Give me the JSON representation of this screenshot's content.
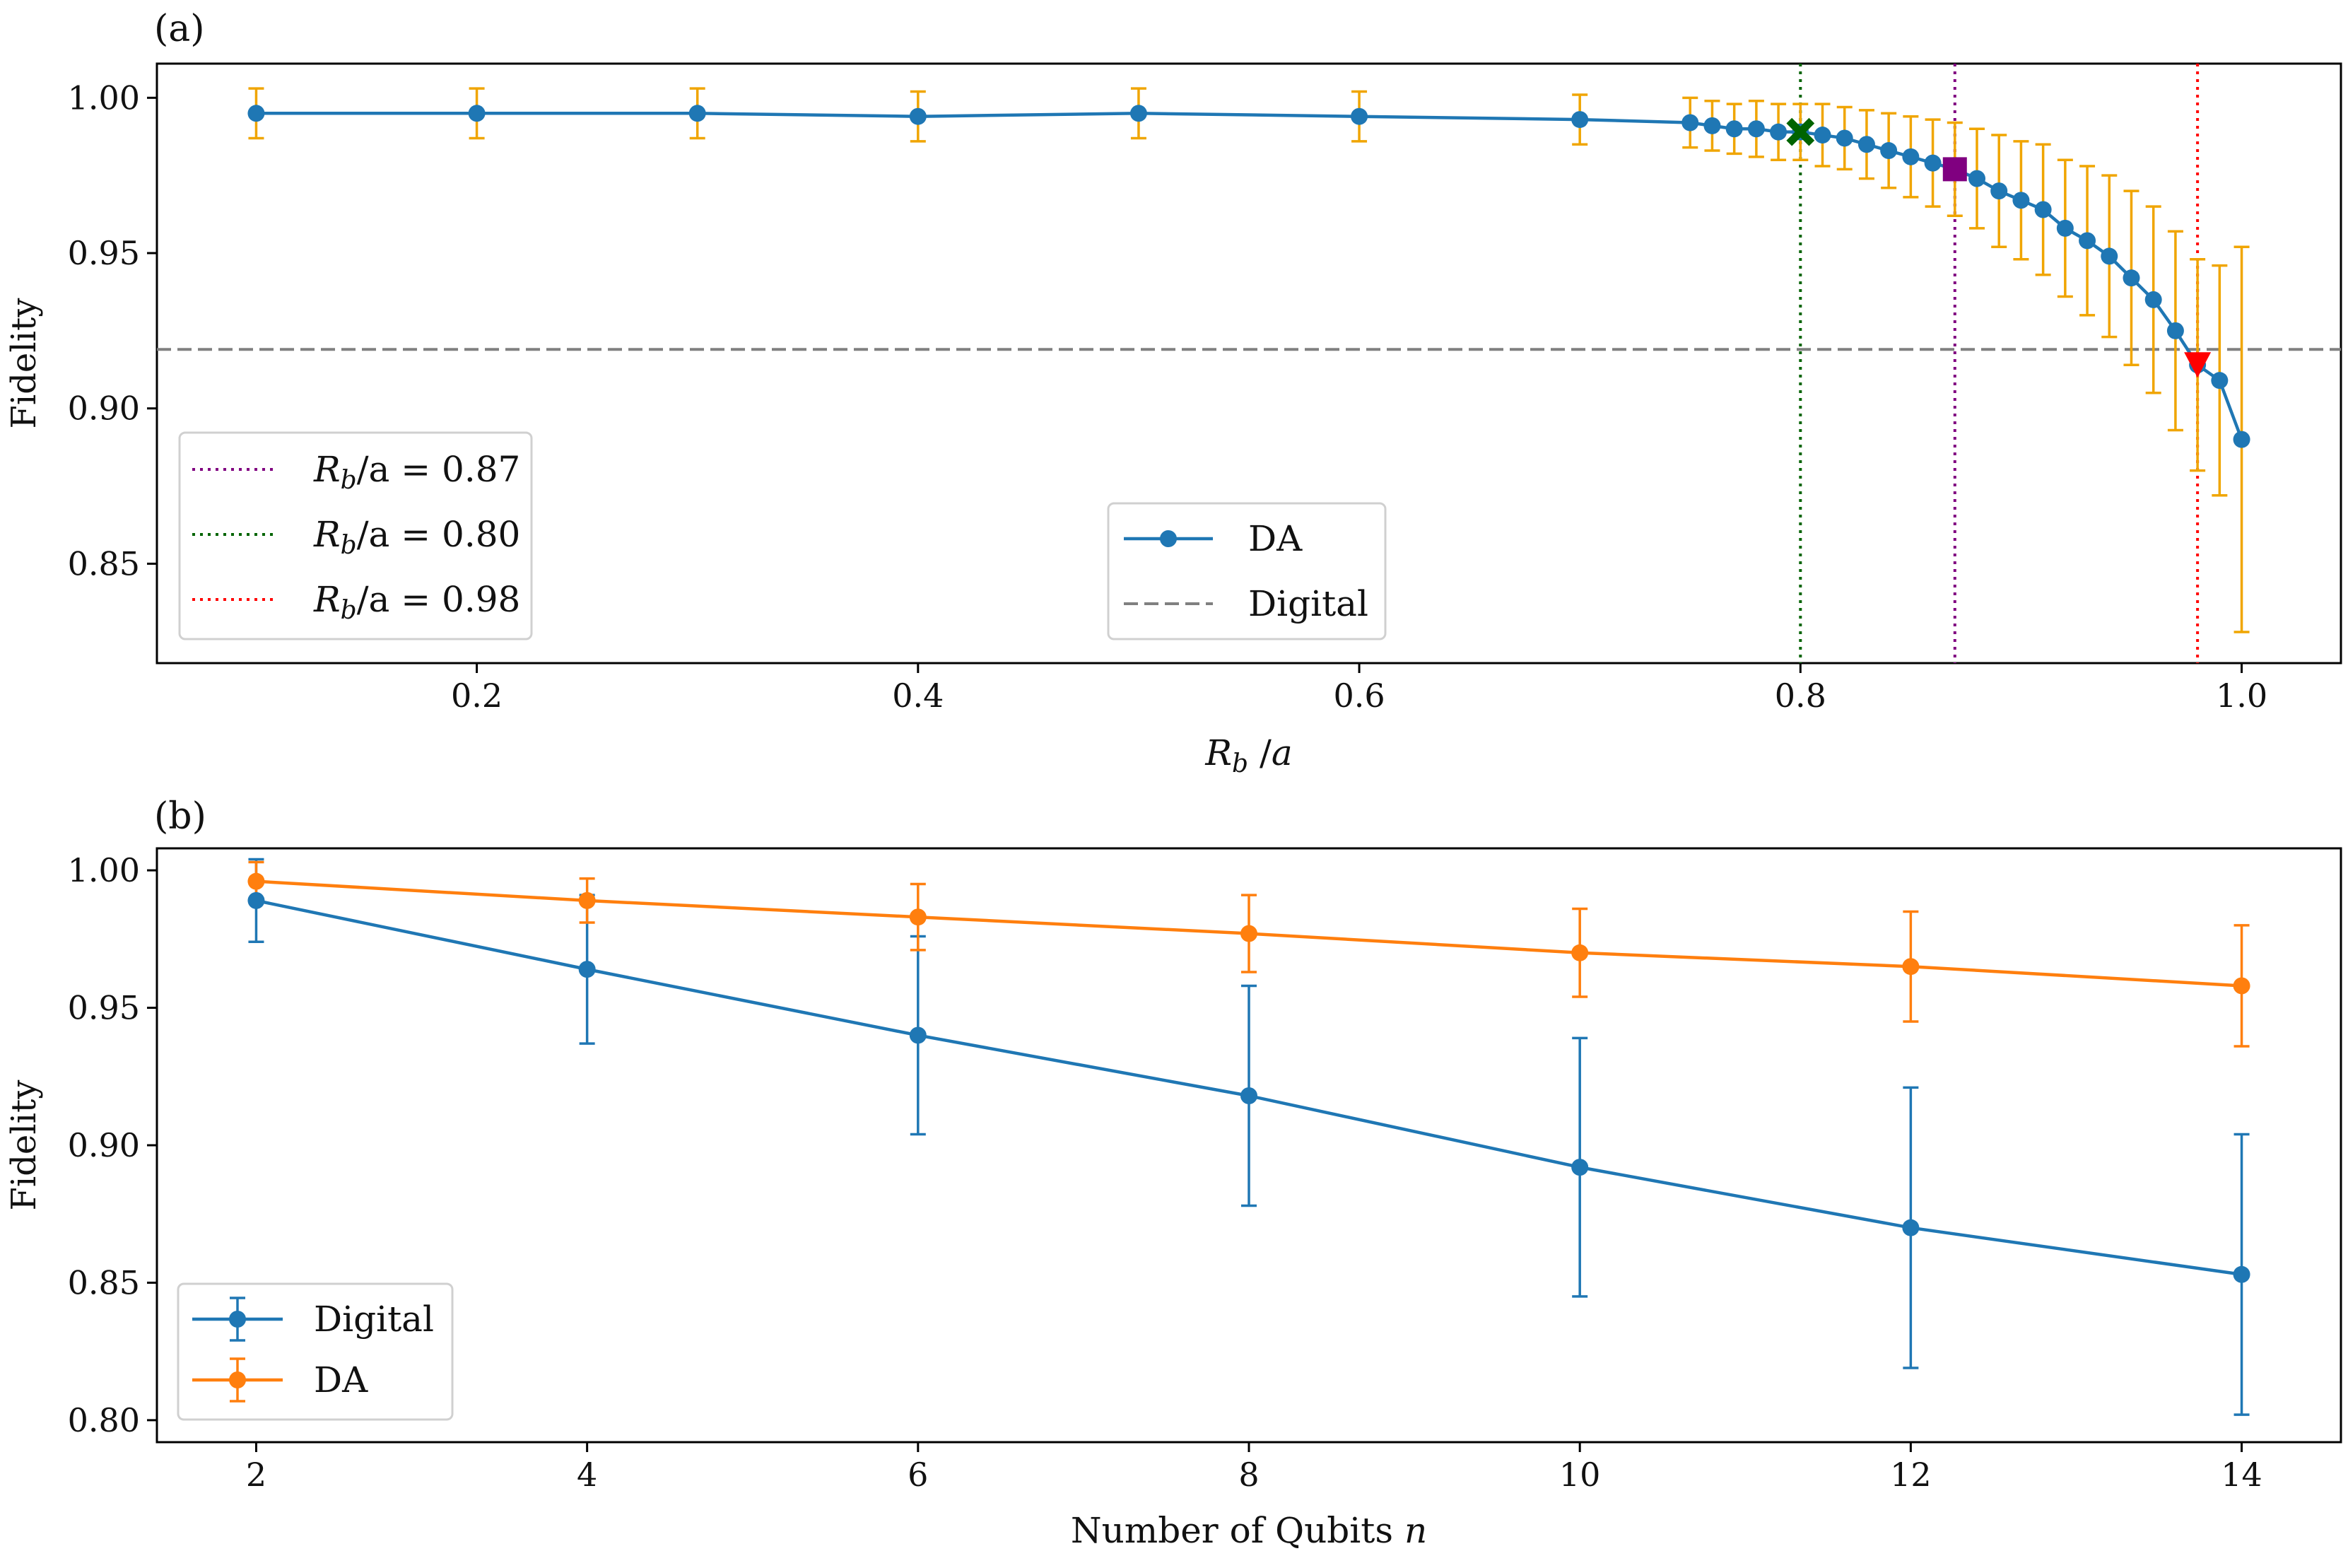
{
  "chart_data": [
    {
      "panel_label": "(a)",
      "type": "line",
      "title": "",
      "xlabel": "R_b /a",
      "ylabel": "Fidelity",
      "xlim": [
        0.055,
        1.045
      ],
      "ylim": [
        0.818,
        1.011
      ],
      "xticks": [
        0.2,
        0.4,
        0.6,
        0.8,
        1.0
      ],
      "xtick_labels": [
        "0.2",
        "0.4",
        "0.6",
        "0.8",
        "1.0"
      ],
      "yticks": [
        0.85,
        0.9,
        0.95,
        1.0
      ],
      "ytick_labels": [
        "0.85",
        "0.90",
        "0.95",
        "1.00"
      ],
      "series": [
        {
          "name": "DA",
          "color": "#1f77b4",
          "errorbar_color": "#f0a500",
          "x": [
            0.1,
            0.2,
            0.3,
            0.4,
            0.5,
            0.6,
            0.7,
            0.75,
            0.76,
            0.77,
            0.78,
            0.79,
            0.8,
            0.81,
            0.82,
            0.83,
            0.84,
            0.85,
            0.86,
            0.87,
            0.88,
            0.89,
            0.9,
            0.91,
            0.92,
            0.93,
            0.94,
            0.95,
            0.96,
            0.97,
            0.98,
            0.99,
            1.0
          ],
          "y": [
            0.995,
            0.995,
            0.995,
            0.994,
            0.995,
            0.994,
            0.993,
            0.992,
            0.991,
            0.99,
            0.99,
            0.989,
            0.989,
            0.988,
            0.987,
            0.985,
            0.983,
            0.981,
            0.979,
            0.977,
            0.974,
            0.97,
            0.967,
            0.964,
            0.958,
            0.954,
            0.949,
            0.942,
            0.935,
            0.925,
            0.914,
            0.909,
            0.89
          ],
          "yerr": [
            0.008,
            0.008,
            0.008,
            0.008,
            0.008,
            0.008,
            0.008,
            0.008,
            0.008,
            0.008,
            0.009,
            0.009,
            0.009,
            0.01,
            0.01,
            0.011,
            0.012,
            0.013,
            0.014,
            0.015,
            0.016,
            0.018,
            0.019,
            0.021,
            0.022,
            0.024,
            0.026,
            0.028,
            0.03,
            0.032,
            0.034,
            0.037,
            0.062
          ]
        }
      ],
      "hlines": [
        {
          "name": "Digital",
          "y": 0.919,
          "color": "#808080",
          "style": "dashed"
        }
      ],
      "vlines": [
        {
          "label": "R_b/a = 0.87",
          "x": 0.87,
          "color": "#800080",
          "style": "dotted"
        },
        {
          "label": "R_b/a = 0.80",
          "x": 0.8,
          "color": "#006400",
          "style": "dotted"
        },
        {
          "label": "R_b/a = 0.98",
          "x": 0.98,
          "color": "#ff0000",
          "style": "dotted"
        }
      ],
      "markers": [
        {
          "x": 0.8,
          "y": 0.989,
          "shape": "x",
          "color": "#006400"
        },
        {
          "x": 0.87,
          "y": 0.977,
          "shape": "square",
          "color": "#800080"
        },
        {
          "x": 0.98,
          "y": 0.914,
          "shape": "triangle-down",
          "color": "#ff0000"
        }
      ],
      "legends": [
        {
          "position": "lower-left",
          "entries": [
            {
              "prefix": "R",
              "sub": "b",
              "rest": "/a = 0.87",
              "color": "#800080",
              "style": "dotted"
            },
            {
              "prefix": "R",
              "sub": "b",
              "rest": "/a = 0.80",
              "color": "#006400",
              "style": "dotted"
            },
            {
              "prefix": "R",
              "sub": "b",
              "rest": "/a = 0.98",
              "color": "#ff0000",
              "style": "dotted"
            }
          ]
        },
        {
          "position": "lower-center",
          "entries": [
            {
              "label": "DA",
              "color": "#1f77b4",
              "style": "line-marker"
            },
            {
              "label": "Digital",
              "color": "#808080",
              "style": "dashed"
            }
          ]
        }
      ]
    },
    {
      "panel_label": "(b)",
      "type": "line",
      "title": "",
      "xlabel": "Number of Qubits n",
      "ylabel": "Fidelity",
      "xlim": [
        1.4,
        14.6
      ],
      "ylim": [
        0.792,
        1.008
      ],
      "xticks": [
        2,
        4,
        6,
        8,
        10,
        12,
        14
      ],
      "xtick_labels": [
        "2",
        "4",
        "6",
        "8",
        "10",
        "12",
        "14"
      ],
      "yticks": [
        0.8,
        0.85,
        0.9,
        0.95,
        1.0
      ],
      "ytick_labels": [
        "0.80",
        "0.85",
        "0.90",
        "0.95",
        "1.00"
      ],
      "series": [
        {
          "name": "Digital",
          "color": "#1f77b4",
          "errorbar_color": "#1f77b4",
          "x": [
            2,
            4,
            6,
            8,
            10,
            12,
            14
          ],
          "y": [
            0.989,
            0.964,
            0.94,
            0.918,
            0.892,
            0.87,
            0.853
          ],
          "yerr": [
            0.015,
            0.027,
            0.036,
            0.04,
            0.047,
            0.051,
            0.051
          ]
        },
        {
          "name": "DA",
          "color": "#ff7f0e",
          "errorbar_color": "#ff7f0e",
          "x": [
            2,
            4,
            6,
            8,
            10,
            12,
            14
          ],
          "y": [
            0.996,
            0.989,
            0.983,
            0.977,
            0.97,
            0.965,
            0.958
          ],
          "yerr": [
            0.007,
            0.008,
            0.012,
            0.014,
            0.016,
            0.02,
            0.022
          ]
        }
      ],
      "legends": [
        {
          "position": "lower-left",
          "entries": [
            {
              "label": "Digital",
              "color": "#1f77b4",
              "style": "errorbar"
            },
            {
              "label": "DA",
              "color": "#ff7f0e",
              "style": "errorbar"
            }
          ]
        }
      ]
    }
  ]
}
